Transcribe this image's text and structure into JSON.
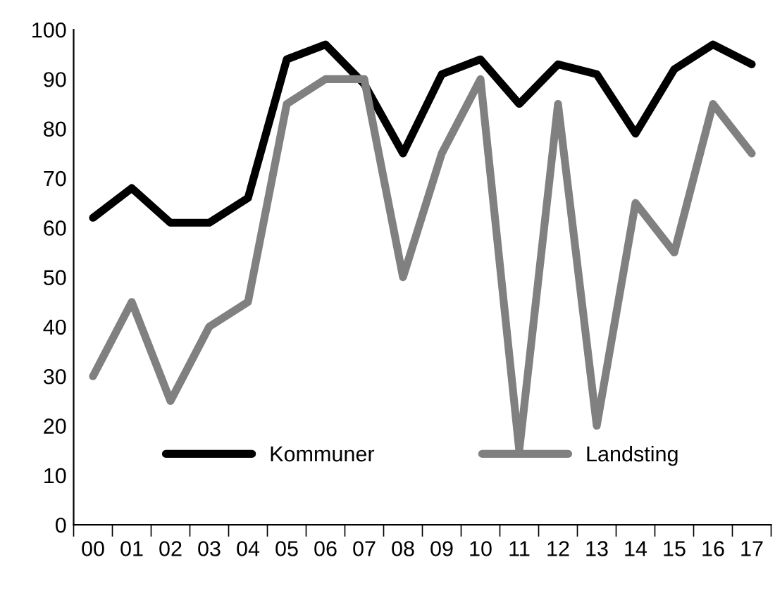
{
  "chart_data": {
    "type": "line",
    "categories": [
      "00",
      "01",
      "02",
      "03",
      "04",
      "05",
      "06",
      "07",
      "08",
      "09",
      "10",
      "11",
      "12",
      "13",
      "14",
      "15",
      "16",
      "17"
    ],
    "series": [
      {
        "name": "Kommuner",
        "color": "#000000",
        "values": [
          62,
          68,
          61,
          61,
          66,
          94,
          97,
          89,
          75,
          91,
          94,
          85,
          93,
          91,
          79,
          92,
          97,
          93
        ]
      },
      {
        "name": "Landsting",
        "color": "#808080",
        "values": [
          30,
          45,
          25,
          40,
          45,
          85,
          90,
          90,
          50,
          75,
          90,
          15,
          85,
          20,
          65,
          55,
          85,
          75
        ]
      }
    ],
    "ylim": [
      0,
      100
    ],
    "yticks": [
      0,
      10,
      20,
      30,
      40,
      50,
      60,
      70,
      80,
      90,
      100
    ],
    "grid": false,
    "legend": "bottom",
    "marker": "none",
    "line_style": "solid"
  }
}
